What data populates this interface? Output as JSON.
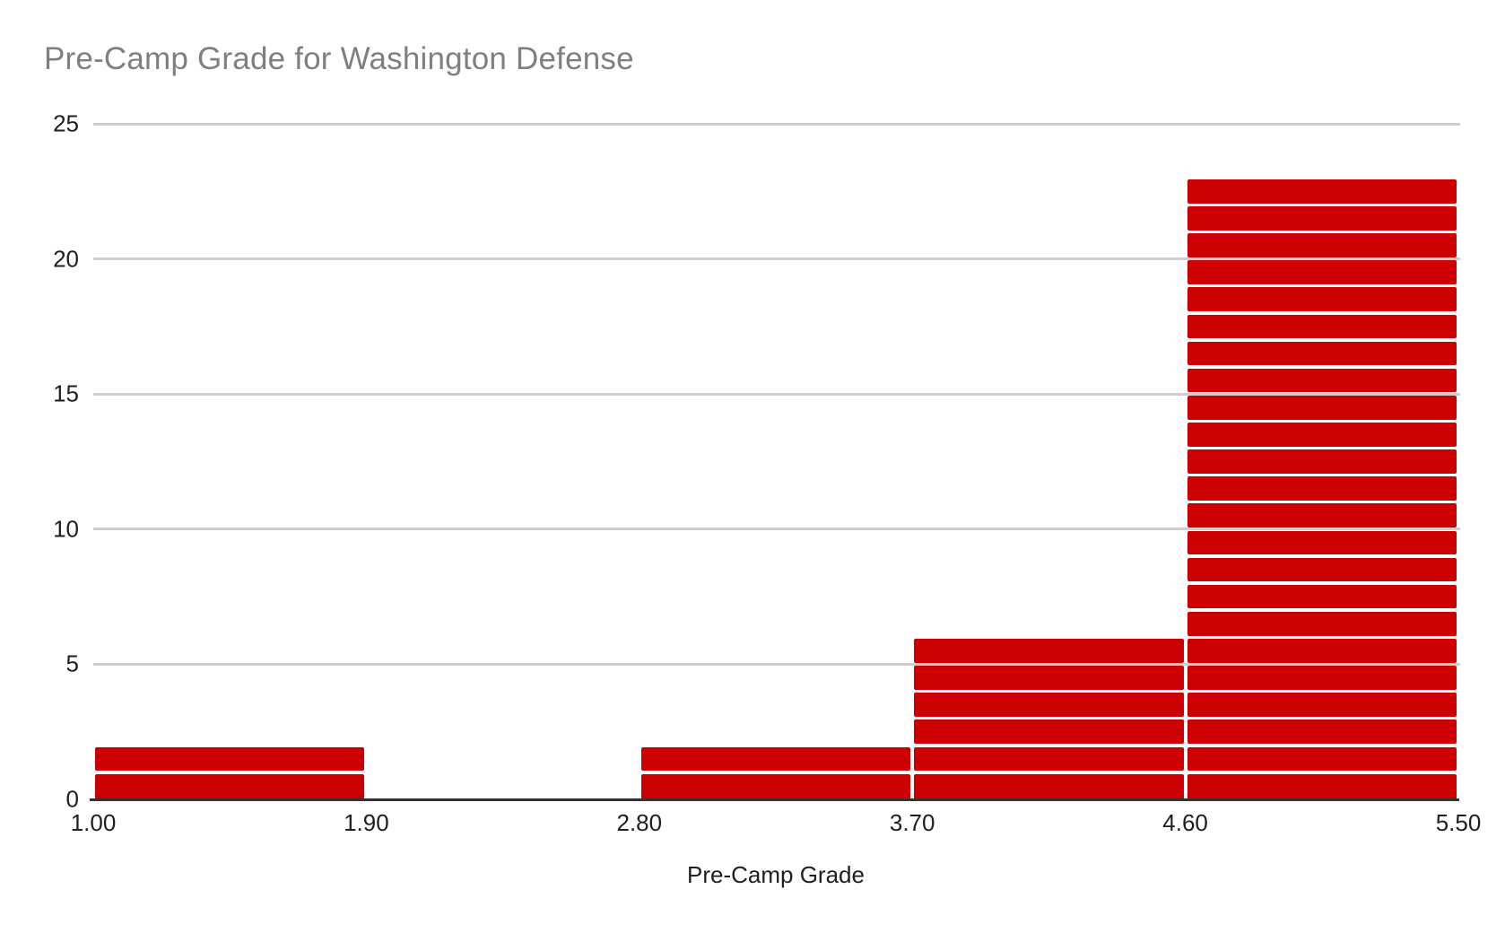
{
  "chart_data": {
    "type": "bar",
    "chart_kind": "histogram",
    "title": "Pre-Camp Grade for Washington Defense",
    "xlabel": "Pre-Camp Grade",
    "ylabel": "",
    "categories": [
      "1.00-1.90",
      "1.90-2.80",
      "2.80-3.70",
      "3.70-4.60",
      "4.60-5.50"
    ],
    "values": [
      2,
      0,
      2,
      6,
      23
    ],
    "x_tick_labels": [
      "1.00",
      "1.90",
      "2.80",
      "3.70",
      "4.60",
      "5.50"
    ],
    "y_tick_labels": [
      "0",
      "5",
      "10",
      "15",
      "20",
      "25"
    ],
    "y_tick_values": [
      0,
      5,
      10,
      15,
      20,
      25
    ],
    "xlim": [
      1.0,
      5.5
    ],
    "ylim": [
      0,
      25
    ],
    "bin_width": 0.9,
    "grid": true,
    "legend_position": "none",
    "item_dividers": true
  },
  "style": {
    "bar_color": "#cc0000",
    "gridline_color": "#cfcfcf",
    "axis_line_color": "#333333",
    "title_color": "#7f7f7f",
    "tick_label_color": "#1f1f1f",
    "axis_title_color": "#1f1f1f",
    "background_color": "#ffffff"
  }
}
